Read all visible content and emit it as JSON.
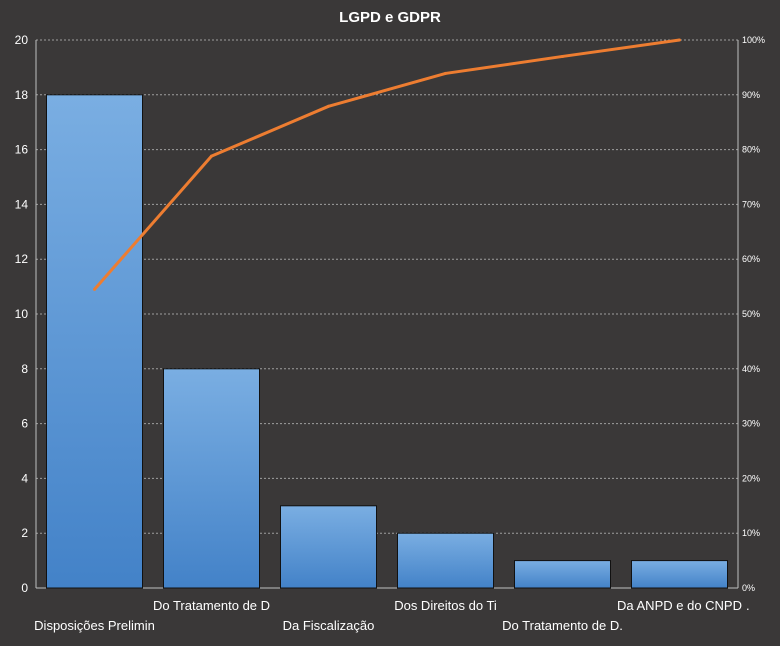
{
  "chart_data": {
    "type": "bar",
    "title": "LGPD e GDPR",
    "categories": [
      "Disposições Prelimin",
      "Do Tratamento de D",
      "Da Fiscalização",
      "Dos Direitos do Ti",
      "Do Tratamento de D.",
      "Da ANPD e do CNPD"
    ],
    "series": [
      {
        "type": "bar",
        "values": [
          18,
          8,
          3,
          2,
          1,
          1
        ]
      },
      {
        "type": "line",
        "axis": "secondary",
        "values": [
          54.5,
          78.8,
          87.9,
          93.9,
          97.0,
          100
        ]
      }
    ],
    "ylim": [
      0,
      20
    ],
    "yticks": [
      "0",
      "2",
      "4",
      "6",
      "8",
      "10",
      "12",
      "14",
      "16",
      "18",
      "20"
    ],
    "y2lim": [
      0,
      100
    ],
    "y2ticks": [
      "0%",
      "10%",
      "20%",
      "30%",
      "40%",
      "50%",
      "60%",
      "70%",
      "80%",
      "90%",
      "100%"
    ],
    "trailing_mark": ".",
    "grid": true,
    "legend": "none",
    "colors": {
      "background": "#3a3838",
      "bar_top": "#7aaee2",
      "bar_bottom": "#4382c8",
      "bar_stroke": "#111111",
      "line": "#ed7d31",
      "grid": "#9e9e9e",
      "text": "#ffffff"
    }
  }
}
